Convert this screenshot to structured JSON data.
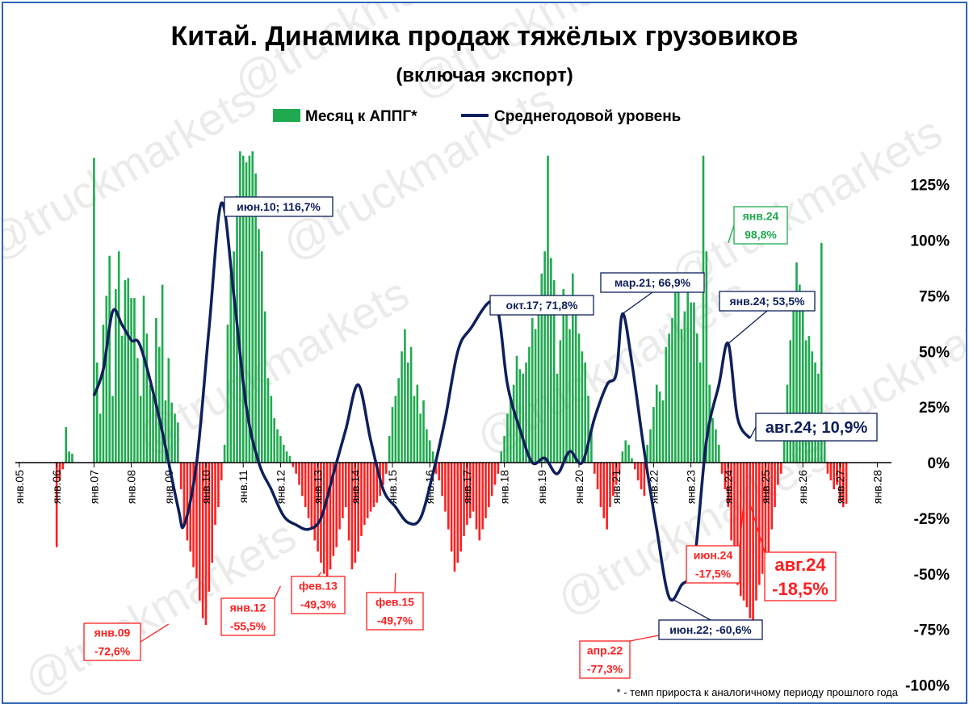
{
  "chart_data": {
    "type": "bar+line",
    "title": "Китай. Динамика продаж тяжёлых грузовиков",
    "subtitle": "(включая экспорт)",
    "footnote": "* - темп прироста к аналогичному периоду прошлого года",
    "watermark": "@truckmarkets",
    "legend": {
      "bars": "Месяц к АППГ*",
      "line": "Среднегодовой уровень",
      "placement": "top-center"
    },
    "colors": {
      "positive": "#1faa4f",
      "negative": "#ff1f1f",
      "line": "#0e1f5b",
      "annotation_blue": "#0e1f5b",
      "annotation_red": "#ff1f1f",
      "annotation_green": "#1faa4f"
    },
    "x_axis": {
      "ticks": [
        "янв.05",
        "янв.06",
        "янв.07",
        "янв.08",
        "янв.09",
        "янв.10",
        "янв.11",
        "янв.12",
        "янв.13",
        "янв.14",
        "янв.15",
        "янв.16",
        "янв.17",
        "янв.18",
        "янв.19",
        "янв.20",
        "янв.21",
        "янв.22",
        "янв.23",
        "янв.24",
        "янв.25",
        "янв.26",
        "янв.27",
        "янв.28"
      ]
    },
    "y_axis": {
      "ticks": [
        "125%",
        "100%",
        "75%",
        "50%",
        "25%",
        "0%",
        "-25%",
        "-50%",
        "-75%",
        "-100%"
      ],
      "range": [
        -100,
        138
      ],
      "position": "right"
    },
    "series_bar_monthly_yoy_pct": [
      {
        "start": "янв.06",
        "values": [
          -38,
          -8,
          -3,
          16,
          5,
          4
        ]
      },
      {
        "start": "янв.07",
        "values": [
          137,
          45,
          22,
          62,
          75,
          93,
          30,
          78,
          95,
          57,
          82,
          83,
          74,
          74,
          47,
          30,
          75,
          58,
          35,
          30,
          65,
          52,
          80,
          28,
          47,
          27,
          22,
          18,
          -12,
          -28,
          -35,
          -40,
          -47,
          -52,
          -62,
          -70,
          -73,
          -58,
          -45,
          -28,
          -20,
          -8,
          8,
          62,
          85,
          95,
          120,
          140,
          138,
          135,
          138,
          140,
          130,
          105,
          95,
          68,
          38,
          30,
          20,
          15,
          12,
          8,
          5,
          3,
          -2,
          -5,
          -10,
          -15,
          -20,
          -25,
          -30,
          -35,
          -40,
          -45,
          -50,
          -55,
          -48,
          -42,
          -38,
          -30,
          -25,
          -20,
          -35,
          -48,
          -45,
          -40,
          -33,
          -28,
          -25,
          -22,
          -20,
          -18,
          -15,
          -10,
          -5,
          12,
          25,
          30,
          38,
          50,
          60,
          45,
          52,
          30,
          35,
          22,
          28,
          15,
          10,
          5,
          -5,
          -8,
          -15,
          -22,
          -30,
          -40,
          -49,
          -45,
          -40,
          -33,
          -28,
          -25,
          -22,
          -30,
          -35,
          -30,
          -25,
          -20,
          -15,
          -10,
          -5,
          5,
          12,
          22,
          28,
          35,
          48,
          42,
          40,
          45,
          52,
          65,
          60,
          73,
          85,
          95,
          138,
          92,
          82,
          40,
          55,
          78,
          70,
          60,
          85,
          72,
          58,
          50,
          45,
          30,
          15,
          -5,
          -12,
          -20,
          -25,
          -30,
          -20,
          -15,
          -10,
          -5,
          5,
          10,
          8,
          2,
          -3,
          -8,
          -12,
          -15,
          8,
          15,
          25,
          35,
          32,
          28,
          52,
          58,
          65,
          78,
          85,
          60,
          68,
          80,
          72,
          72,
          58,
          45,
          138,
          95,
          35,
          20,
          15,
          8,
          -5,
          -12,
          -20,
          -35,
          -48,
          -55,
          -60,
          -62,
          -65,
          -70,
          -77,
          -62,
          -55,
          -50,
          -45,
          -40,
          -30,
          -20,
          -10,
          -5,
          20,
          35,
          55,
          70,
          90,
          80,
          70,
          55,
          57,
          50,
          45,
          40,
          98.8,
          15,
          -5,
          -8,
          -12,
          -10,
          -17.5,
          -20,
          -18.5
        ]
      }
    ],
    "series_line_avg_pct": [
      {
        "date": "янв.07",
        "value": 30
      },
      {
        "date": "апр.07",
        "value": 42
      },
      {
        "date": "июл.07",
        "value": 68
      },
      {
        "date": "окт.07",
        "value": 62
      },
      {
        "date": "янв.08",
        "value": 55
      },
      {
        "date": "апр.08",
        "value": 52
      },
      {
        "date": "окт.08",
        "value": 20
      },
      {
        "date": "апр.09",
        "value": -20
      },
      {
        "date": "июн.09",
        "value": -28
      },
      {
        "date": "окт.09",
        "value": 0
      },
      {
        "date": "фев.10",
        "value": 60
      },
      {
        "date": "июн.10",
        "value": 116.7
      },
      {
        "date": "окт.10",
        "value": 75
      },
      {
        "date": "фев.11",
        "value": 25
      },
      {
        "date": "июн.11",
        "value": 0
      },
      {
        "date": "окт.11",
        "value": -12
      },
      {
        "date": "фев.12",
        "value": -24
      },
      {
        "date": "июн.12",
        "value": -28
      },
      {
        "date": "окт.12",
        "value": -30
      },
      {
        "date": "фев.13",
        "value": -25
      },
      {
        "date": "июн.13",
        "value": -5
      },
      {
        "date": "окт.13",
        "value": 15
      },
      {
        "date": "фев.14",
        "value": 35
      },
      {
        "date": "июн.14",
        "value": 10
      },
      {
        "date": "окт.14",
        "value": -12
      },
      {
        "date": "фев.15",
        "value": -20
      },
      {
        "date": "июн.15",
        "value": -27
      },
      {
        "date": "окт.15",
        "value": -25
      },
      {
        "date": "фев.16",
        "value": -5
      },
      {
        "date": "июн.16",
        "value": 20
      },
      {
        "date": "окт.16",
        "value": 50
      },
      {
        "date": "фев.17",
        "value": 60
      },
      {
        "date": "окт.17",
        "value": 71.8
      },
      {
        "date": "фев.18",
        "value": 35
      },
      {
        "date": "июн.18",
        "value": 15
      },
      {
        "date": "окт.18",
        "value": 0
      },
      {
        "date": "фев.19",
        "value": 2
      },
      {
        "date": "июн.19",
        "value": -5
      },
      {
        "date": "окт.19",
        "value": 5
      },
      {
        "date": "фев.20",
        "value": 0
      },
      {
        "date": "июн.20",
        "value": 20
      },
      {
        "date": "окт.20",
        "value": 35
      },
      {
        "date": "янв.21",
        "value": 40
      },
      {
        "date": "мар.21",
        "value": 66.9
      },
      {
        "date": "июн.21",
        "value": 45
      },
      {
        "date": "окт.21",
        "value": 5
      },
      {
        "date": "фев.22",
        "value": -30
      },
      {
        "date": "июн.22",
        "value": -60.6
      },
      {
        "date": "окт.22",
        "value": -55
      },
      {
        "date": "фев.23",
        "value": -45
      },
      {
        "date": "июн.23",
        "value": 10
      },
      {
        "date": "окт.23",
        "value": 35
      },
      {
        "date": "янв.24",
        "value": 53.5
      },
      {
        "date": "апр.24",
        "value": 20
      },
      {
        "date": "авг.24",
        "value": 10.9
      }
    ],
    "annotations": [
      {
        "id": "jan09",
        "lines": [
          "янв.09",
          "-72,6%"
        ],
        "color": "red",
        "date": "янв.09",
        "value": -72.6
      },
      {
        "id": "jun10",
        "lines": [
          "июн.10; 116,7%"
        ],
        "color": "blue",
        "date": "июн.10",
        "value": 116.7
      },
      {
        "id": "jan12",
        "lines": [
          "янв.12",
          "-55,5%"
        ],
        "color": "red",
        "date": "янв.12",
        "value": -55.5
      },
      {
        "id": "feb13",
        "lines": [
          "фев.13",
          "-49,3%"
        ],
        "color": "red",
        "date": "фев.13",
        "value": -49.3
      },
      {
        "id": "feb15",
        "lines": [
          "фев.15",
          "-49,7%"
        ],
        "color": "red",
        "date": "фев.15",
        "value": -49.7
      },
      {
        "id": "oct17",
        "lines": [
          "окт.17; 71,8%"
        ],
        "color": "blue",
        "date": "окт.17",
        "value": 71.8
      },
      {
        "id": "mar21",
        "lines": [
          "мар.21; 66,9%"
        ],
        "color": "blue",
        "date": "мар.21",
        "value": 66.9
      },
      {
        "id": "apr22",
        "lines": [
          "апр.22",
          "-77,3%"
        ],
        "color": "red",
        "date": "апр.22",
        "value": -77.3
      },
      {
        "id": "jun22",
        "lines": [
          "июн.22; -60,6%"
        ],
        "color": "blue",
        "date": "июн.22",
        "value": -60.6
      },
      {
        "id": "jan24g",
        "lines": [
          "янв.24",
          "98,8%"
        ],
        "color": "green",
        "date": "янв.24",
        "value": 98.8
      },
      {
        "id": "jan24b",
        "lines": [
          "янв.24; 53,5%"
        ],
        "color": "blue",
        "date": "янв.24",
        "value": 53.5
      },
      {
        "id": "jun24",
        "lines": [
          "июн.24",
          "-17,5%"
        ],
        "color": "red",
        "date": "июн.24",
        "value": -17.5
      },
      {
        "id": "aug24b",
        "lines": [
          "авг.24; 10,9%"
        ],
        "color": "blue",
        "date": "авг.24",
        "value": 10.9
      },
      {
        "id": "aug24r",
        "lines": [
          "авг.24",
          "-18,5%"
        ],
        "color": "red",
        "date": "авг.24",
        "value": -18.5
      }
    ]
  }
}
